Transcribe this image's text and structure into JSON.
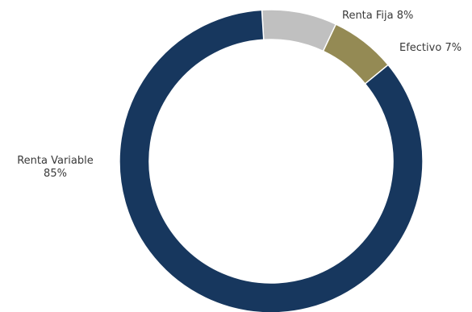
{
  "chart_data": {
    "type": "pie",
    "variant": "donut",
    "title": "",
    "slices": [
      {
        "label": "Renta Variable",
        "value_label": "85%",
        "value": 85,
        "color": "#17375E"
      },
      {
        "label": "Renta Fija",
        "value_label": "8%",
        "value": 8,
        "color": "#C0C0C0"
      },
      {
        "label": "Efectivo",
        "value_label": "7%",
        "value": 7,
        "color": "#948A54"
      }
    ],
    "legend": "none",
    "data_labels": "outside"
  }
}
